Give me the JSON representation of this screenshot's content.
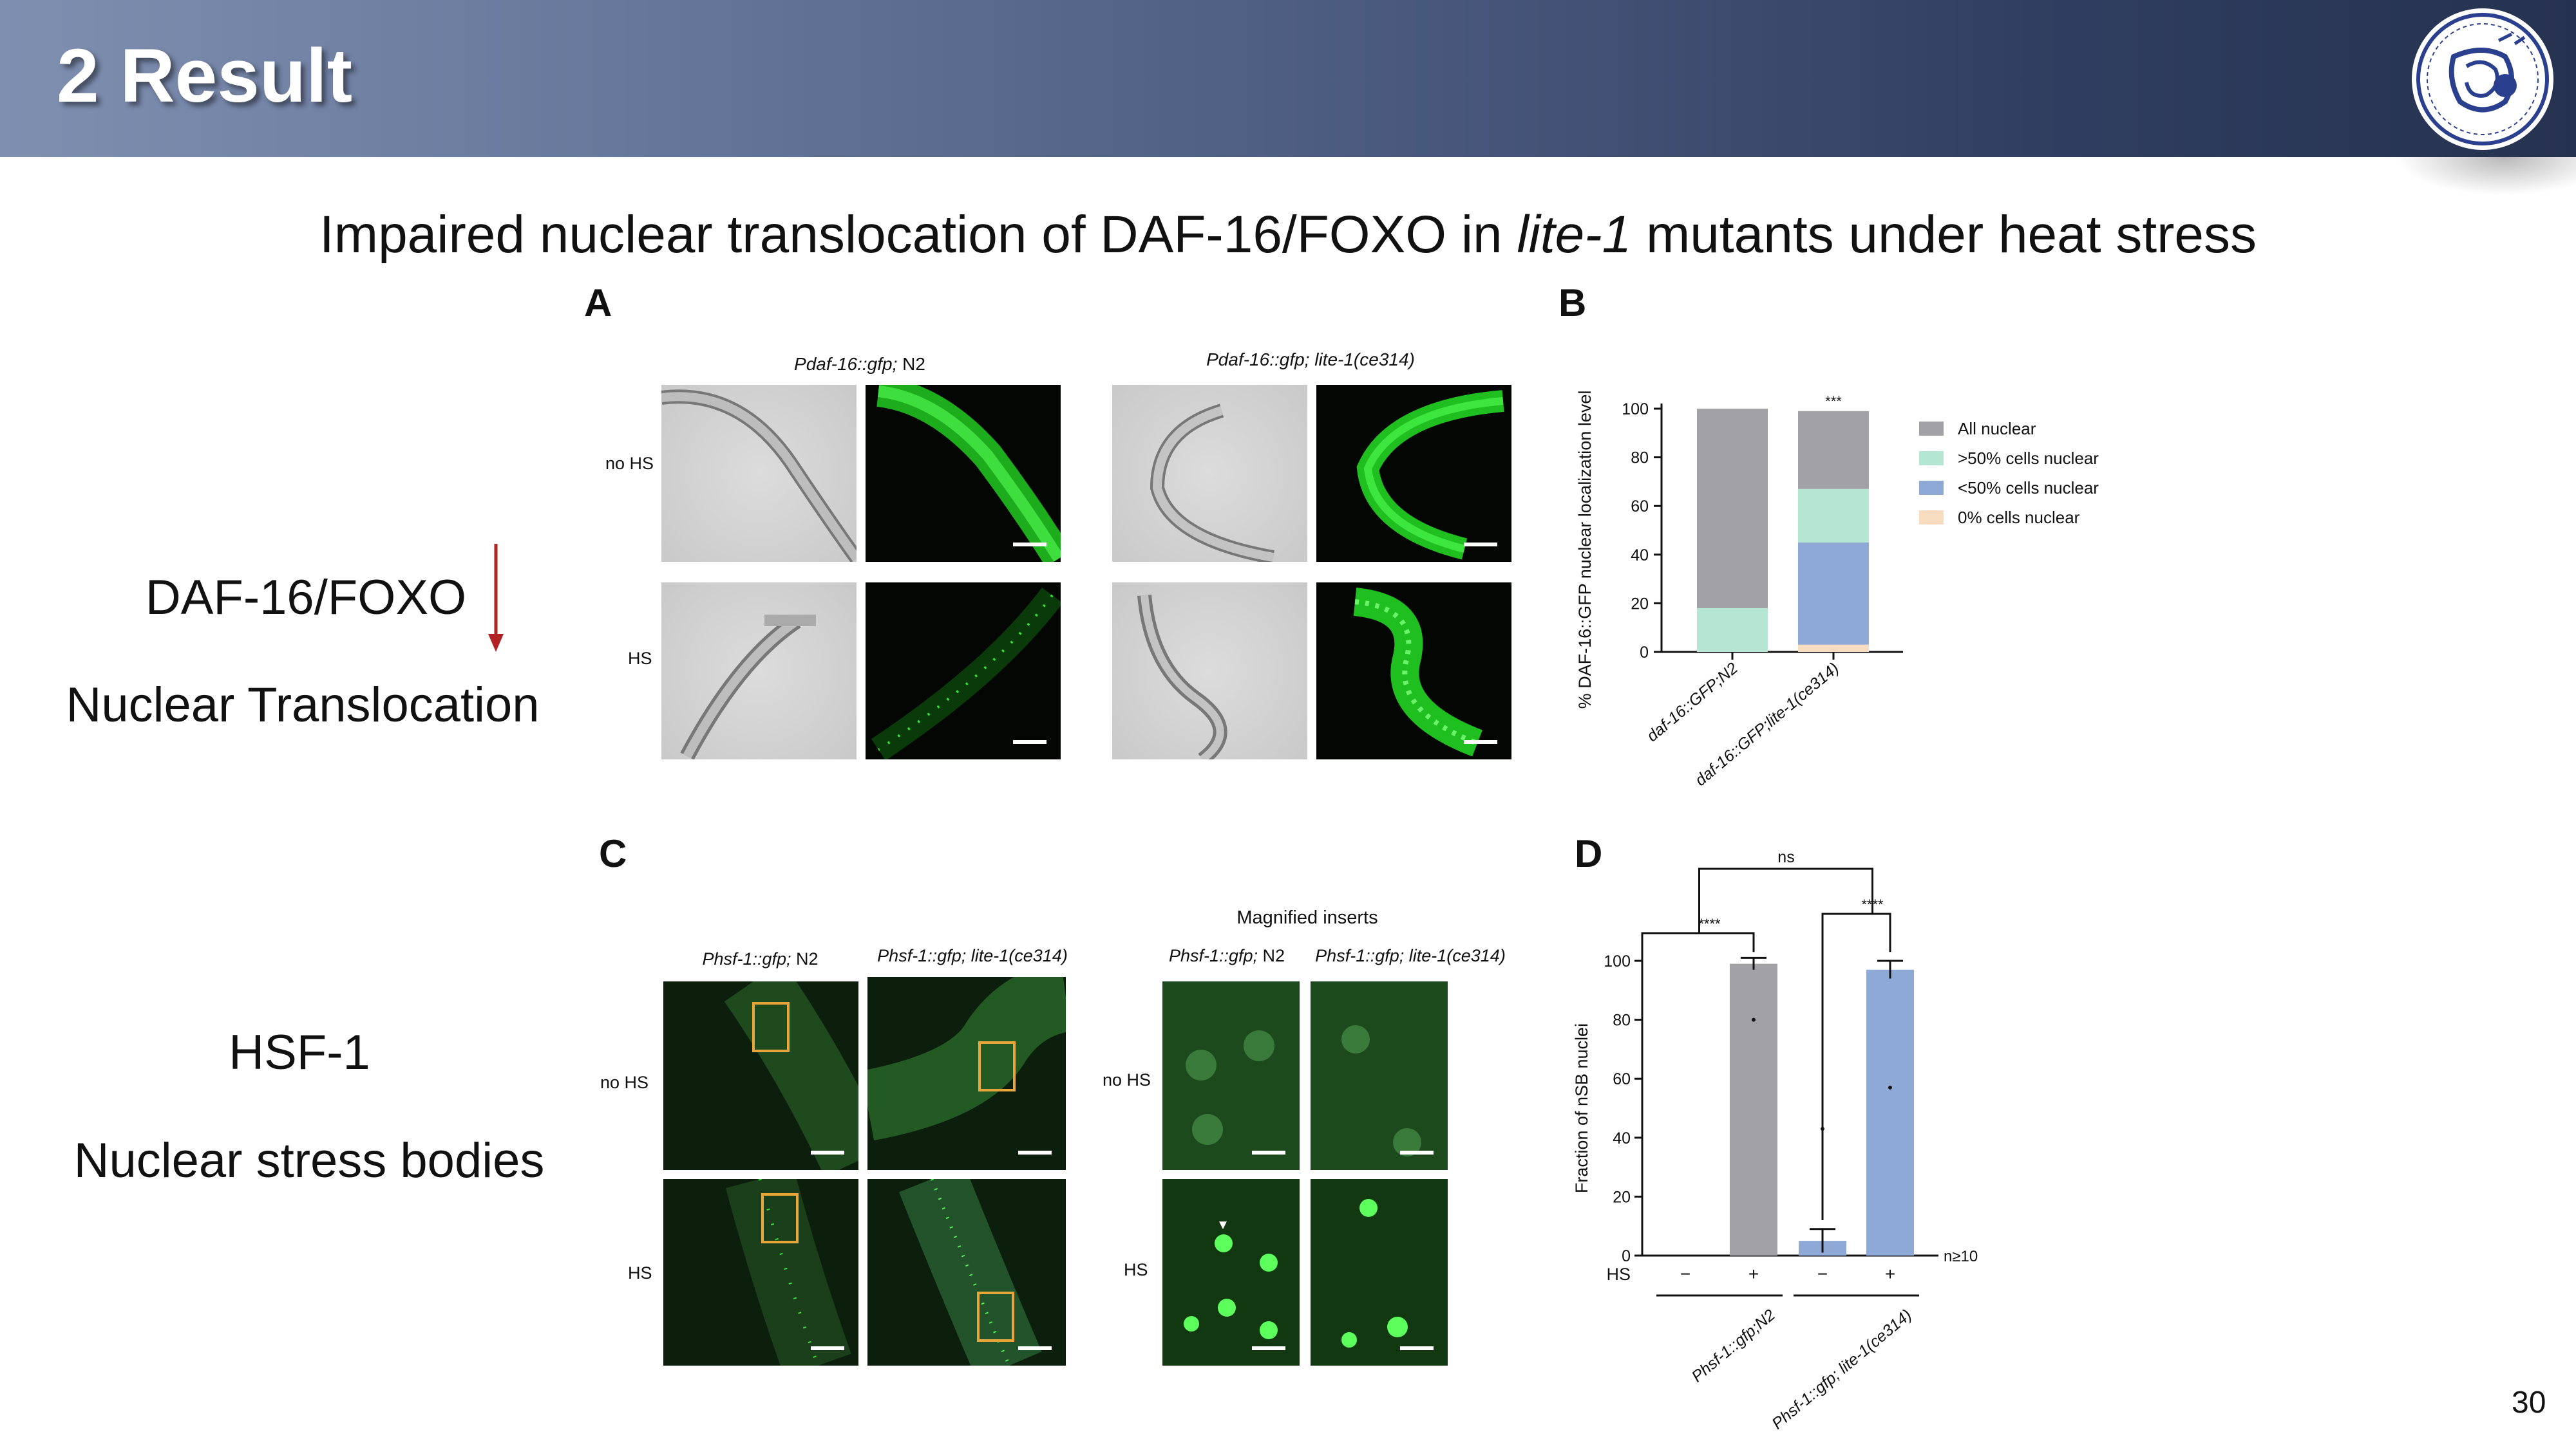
{
  "header": {
    "title": "2 Result"
  },
  "subtitle": {
    "before": "Impaired nuclear translocation of DAF-16/FOXO in ",
    "italic": "lite-1",
    "after": " mutants under heat stress"
  },
  "side": {
    "line1": "DAF-16/FOXO",
    "line2": "Nuclear Translocation",
    "line3": "HSF-1",
    "line4": "Nuclear stress bodies",
    "arrow_color": "#b22222"
  },
  "panels": {
    "a": {
      "letter": "A",
      "cap1_italic": "Pdaf-16::gfp;",
      "cap1_plain": " N2",
      "cap2_italic": "Pdaf-16::gfp; lite-1(ce314)",
      "row1": "no HS",
      "row2": "HS"
    },
    "b": {
      "letter": "B"
    },
    "c": {
      "letter": "C",
      "cap1_italic": "Phsf-1::gfp;",
      "cap1_plain": " N2",
      "cap2_italic": "Phsf-1::gfp; lite-1(ce314)",
      "magnified": "Magnified inserts",
      "cap3_italic": "Phsf-1::gfp;",
      "cap3_plain": " N2",
      "cap4_italic": "Phsf-1::gfp; lite-1(ce314)",
      "row1": "no HS",
      "row2": "HS",
      "row3": "no HS",
      "row4": "HS"
    },
    "d": {
      "letter": "D"
    }
  },
  "chart_data": [
    {
      "type": "bar",
      "stacked": true,
      "ylabel": "% DAF-16::GFP nuclear localization level",
      "ylim": [
        0,
        100
      ],
      "yticks": [
        0,
        20,
        40,
        60,
        80,
        100
      ],
      "categories": [
        "daf-16::GFP;N2",
        "daf-16::GFP;lite-1(ce314)"
      ],
      "series": [
        {
          "name": "0% cells nuclear",
          "color": "#f8dcc0",
          "values": [
            0,
            3
          ]
        },
        {
          "name": "<50% cells nuclear",
          "color": "#8fa9d6",
          "values": [
            0,
            42
          ]
        },
        {
          "name": ">50% cells nuclear",
          "color": "#b5e6d3",
          "values": [
            18,
            22
          ]
        },
        {
          "name": "All nuclear",
          "color": "#a2a2a6",
          "values": [
            82,
            32
          ]
        }
      ],
      "annotation": "***",
      "legend": "right"
    },
    {
      "type": "bar",
      "ylabel": "Fraction of nSB nuclei",
      "ylim": [
        0,
        100
      ],
      "yticks": [
        0,
        20,
        40,
        60,
        80,
        100
      ],
      "hs_label": "HS",
      "categories": [
        "−",
        "+",
        "−",
        "+"
      ],
      "values": [
        0,
        99,
        5,
        97
      ],
      "errors": [
        0,
        2,
        4,
        3
      ],
      "outliers": [
        null,
        80,
        43,
        57
      ],
      "colors": [
        "#a2a2a6",
        "#a2a2a6",
        "#8fa9d6",
        "#8fa9d6"
      ],
      "groups": [
        "Phsf-1::gfp;N2",
        "Phsf-1::gfp; lite-1(ce314)"
      ],
      "n_label": "n≥10",
      "significance": [
        "****",
        "****",
        "ns"
      ]
    }
  ]
}
